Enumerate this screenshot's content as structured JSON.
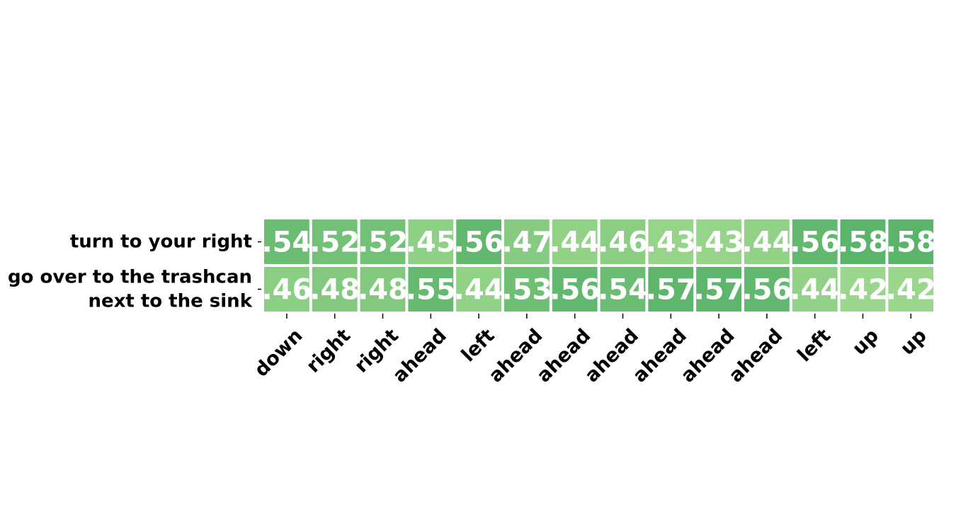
{
  "chart_data": {
    "type": "heatmap",
    "rows": [
      [
        "turn to your right"
      ],
      [
        "go over to the trashcan",
        "next to the sink"
      ]
    ],
    "columns": [
      "down",
      "right",
      "right",
      "ahead",
      "left",
      "ahead",
      "ahead",
      "ahead",
      "ahead",
      "ahead",
      "ahead",
      "left",
      "up",
      "up"
    ],
    "values": [
      [
        0.54,
        0.52,
        0.52,
        0.45,
        0.56,
        0.47,
        0.44,
        0.46,
        0.43,
        0.43,
        0.44,
        0.56,
        0.58,
        0.58
      ],
      [
        0.46,
        0.48,
        0.48,
        0.55,
        0.44,
        0.53,
        0.56,
        0.54,
        0.57,
        0.57,
        0.56,
        0.44,
        0.42,
        0.42
      ]
    ],
    "cell_labels": [
      [
        ".54",
        ".52",
        ".52",
        ".45",
        ".56",
        ".47",
        ".44",
        ".46",
        ".43",
        ".43",
        ".44",
        ".56",
        ".58",
        ".58"
      ],
      [
        ".46",
        ".48",
        ".48",
        ".55",
        ".44",
        ".53",
        ".56",
        ".54",
        ".57",
        ".57",
        ".56",
        ".44",
        ".42",
        ".42"
      ]
    ],
    "colormap": {
      "low_value": 0.42,
      "low_color": "#9ad68b",
      "high_value": 0.58,
      "high_color": "#5ab46a"
    },
    "cell_text_color": "#ffffff",
    "cell_border_color": "#ffffff",
    "colorbar": false
  }
}
